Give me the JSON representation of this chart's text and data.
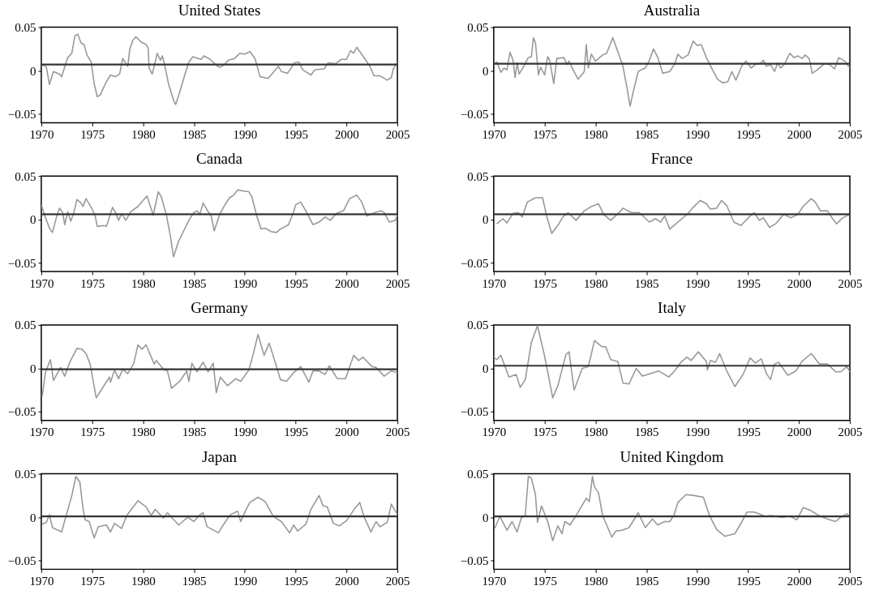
{
  "chart_data": [
    {
      "type": "line",
      "title": "United States",
      "color": "#999999",
      "xlim": [
        1970,
        2005
      ],
      "ylim": [
        -0.06,
        0.05
      ],
      "xticks": [
        1970,
        1975,
        1980,
        1985,
        1990,
        1995,
        2000,
        2005
      ],
      "yticks": [
        -0.05,
        0,
        0.05
      ],
      "ref_lines": [
        {
          "axis": "y",
          "value": 0.007,
          "color": "#333333"
        }
      ],
      "x": [
        1970,
        1970.5,
        1970.8,
        1971.2,
        1971.8,
        1972,
        1972.3,
        1972.6,
        1973,
        1973.3,
        1973.6,
        1973.9,
        1974.2,
        1974.5,
        1974.9,
        1975.2,
        1975.5,
        1975.8,
        1976.3,
        1976.8,
        1977.3,
        1977.7,
        1978,
        1978.5,
        1978.7,
        1979,
        1979.3,
        1979.8,
        1980.3,
        1980.5,
        1980.6,
        1980.9,
        1981.2,
        1981.4,
        1981.7,
        1981.9,
        1982.1,
        1982.5,
        1983,
        1983.2,
        1983.6,
        1984.1,
        1984.5,
        1984.9,
        1985.7,
        1986,
        1986.6,
        1987.3,
        1987.6,
        1988,
        1988.4,
        1989,
        1989.5,
        1990,
        1990.5,
        1991,
        1991.5,
        1992.3,
        1992.8,
        1993.3,
        1993.6,
        1994.2,
        1994.9,
        1995.3,
        1995.7,
        1996.5,
        1996.9,
        1997.8,
        1998.2,
        1998.9,
        1999.5,
        2000,
        2000.4,
        2000.7,
        2001,
        2001.6,
        2002.3,
        2002.7,
        2003.3,
        2004,
        2004.4,
        2004.6,
        2005
      ],
      "values": [
        0.008,
        0.004,
        -0.016,
        -0.001,
        -0.004,
        -0.007,
        0.004,
        0.015,
        0.02,
        0.04,
        0.042,
        0.032,
        0.03,
        0.018,
        0.01,
        -0.015,
        -0.03,
        -0.028,
        -0.015,
        -0.005,
        -0.007,
        -0.004,
        0.014,
        0.005,
        0.025,
        0.035,
        0.039,
        0.033,
        0.03,
        0.026,
        0.003,
        -0.004,
        0.01,
        0.02,
        0.012,
        0.017,
        0.008,
        -0.015,
        -0.034,
        -0.039,
        -0.025,
        -0.005,
        0.01,
        0.016,
        0.013,
        0.017,
        0.013,
        0.005,
        0.004,
        0.007,
        0.012,
        0.014,
        0.02,
        0.019,
        0.022,
        0.014,
        -0.007,
        -0.009,
        -0.002,
        0.005,
        -0.001,
        -0.003,
        0.009,
        0.01,
        0.001,
        -0.005,
        0.001,
        0.002,
        0.009,
        0.008,
        0.013,
        0.013,
        0.023,
        0.02,
        0.027,
        0.017,
        0.005,
        -0.006,
        -0.006,
        -0.011,
        -0.008,
        0.002,
        0.01
      ]
    },
    {
      "type": "line",
      "title": "Australia",
      "color": "#999999",
      "xlim": [
        1970,
        2005
      ],
      "ylim": [
        -0.06,
        0.05
      ],
      "xticks": [
        1970,
        1975,
        1980,
        1985,
        1990,
        1995,
        2000,
        2005
      ],
      "yticks": [
        -0.05,
        0,
        0.05
      ],
      "ref_lines": [
        {
          "axis": "y",
          "value": 0.008,
          "color": "#333333"
        }
      ],
      "x": [
        1970,
        1970.3,
        1970.7,
        1971,
        1971.3,
        1971.6,
        1971.9,
        1972.1,
        1972.3,
        1972.5,
        1973,
        1973.4,
        1973.7,
        1973.9,
        1974.1,
        1974.4,
        1974.6,
        1975,
        1975.3,
        1975.5,
        1975.9,
        1976.2,
        1976.9,
        1977.2,
        1977.4,
        1977.8,
        1978.3,
        1978.9,
        1979.1,
        1979.3,
        1979.6,
        1980,
        1980.7,
        1981.1,
        1981.7,
        1982.1,
        1982.4,
        1982.7,
        1983.1,
        1983.4,
        1983.7,
        1984.2,
        1984.5,
        1984.9,
        1985.3,
        1985.7,
        1986.1,
        1986.6,
        1987.3,
        1987.8,
        1988.1,
        1988.5,
        1989.1,
        1989.6,
        1990,
        1990.4,
        1990.9,
        1991.5,
        1992,
        1992.5,
        1993,
        1993.4,
        1993.8,
        1994.4,
        1994.8,
        1995.3,
        1995.8,
        1996.2,
        1996.5,
        1996.8,
        1997.2,
        1997.6,
        1997.9,
        1998.2,
        1998.6,
        1999.1,
        1999.5,
        1999.9,
        2000.3,
        2000.6,
        2001,
        2001.3,
        2001.8,
        2002.5,
        2003,
        2003.5,
        2003.9,
        2004.5,
        2005
      ],
      "values": [
        0.007,
        0.01,
        -0.002,
        0.003,
        0.001,
        0.021,
        0.012,
        -0.008,
        0.009,
        -0.004,
        0.006,
        0.015,
        0.016,
        0.038,
        0.032,
        -0.005,
        0.004,
        -0.005,
        0.016,
        0.012,
        -0.015,
        0.014,
        0.015,
        0.007,
        0.011,
        0.001,
        -0.01,
        -0.001,
        0.03,
        0.003,
        0.019,
        0.011,
        0.018,
        0.02,
        0.038,
        0.025,
        0.015,
        0.005,
        -0.02,
        -0.041,
        -0.025,
        -0.001,
        0.001,
        0.003,
        0.012,
        0.025,
        0.016,
        -0.003,
        -0.001,
        0.008,
        0.019,
        0.014,
        0.018,
        0.034,
        0.029,
        0.03,
        0.015,
        0.001,
        -0.01,
        -0.014,
        -0.013,
        -0.001,
        -0.011,
        0.006,
        0.011,
        0.003,
        0.008,
        0.008,
        0.012,
        0.005,
        0.007,
        -0.001,
        0.009,
        0.003,
        0.008,
        0.02,
        0.015,
        0.017,
        0.014,
        0.018,
        0.014,
        -0.003,
        0.001,
        0.008,
        0.007,
        0.002,
        0.015,
        0.011,
        0.003
      ]
    },
    {
      "type": "line",
      "title": "Canada",
      "color": "#999999",
      "xlim": [
        1970,
        2005
      ],
      "ylim": [
        -0.06,
        0.05
      ],
      "xticks": [
        1970,
        1975,
        1980,
        1985,
        1990,
        1995,
        2000,
        2005
      ],
      "yticks": [
        -0.05,
        0,
        0.05
      ],
      "ref_lines": [
        {
          "axis": "y",
          "value": 0.006,
          "color": "#333333"
        }
      ],
      "x": [
        1970,
        1970.3,
        1970.8,
        1971.1,
        1971.5,
        1971.8,
        1972.1,
        1972.3,
        1972.6,
        1972.9,
        1973.2,
        1973.5,
        1973.9,
        1974.1,
        1974.4,
        1975,
        1975.3,
        1975.5,
        1976.2,
        1976.4,
        1977,
        1977.3,
        1977.6,
        1977.9,
        1978.3,
        1978.8,
        1979.5,
        1980,
        1980.4,
        1980.7,
        1981,
        1981.5,
        1981.8,
        1982.3,
        1982.7,
        1983,
        1983.5,
        1984,
        1984.5,
        1985,
        1985.3,
        1985.6,
        1985.9,
        1986.4,
        1986.7,
        1987,
        1987.5,
        1988,
        1988.5,
        1988.9,
        1989.3,
        1989.8,
        1990.4,
        1990.7,
        1991.2,
        1991.6,
        1992,
        1992.6,
        1993.1,
        1993.5,
        1994.3,
        1994.8,
        1995,
        1995.5,
        1996,
        1996.7,
        1997.3,
        1997.9,
        1998.4,
        1999,
        1999.7,
        2000.3,
        2001,
        2001.5,
        2002,
        2002.8,
        2003.4,
        2003.7,
        2004.2,
        2004.8,
        2005
      ],
      "values": [
        0.017,
        0.006,
        -0.01,
        -0.015,
        0.003,
        0.013,
        0.008,
        -0.006,
        0.009,
        -0.002,
        0.008,
        0.023,
        0.019,
        0.015,
        0.024,
        0.012,
        0.004,
        -0.008,
        -0.007,
        -0.008,
        0.014,
        0.008,
        -0.001,
        0.007,
        -0.001,
        0.009,
        0.015,
        0.022,
        0.027,
        0.016,
        0.005,
        0.032,
        0.026,
        0.005,
        -0.02,
        -0.043,
        -0.025,
        -0.013,
        -0.001,
        0.008,
        0.01,
        0.006,
        0.019,
        0.009,
        0.004,
        -0.013,
        0.005,
        0.016,
        0.025,
        0.028,
        0.034,
        0.033,
        0.032,
        0.026,
        0.003,
        -0.011,
        -0.01,
        -0.014,
        -0.015,
        -0.011,
        -0.006,
        0.009,
        0.017,
        0.02,
        0.01,
        -0.006,
        -0.003,
        0.003,
        -0.001,
        0.007,
        0.01,
        0.024,
        0.028,
        0.02,
        0.004,
        0.008,
        0.01,
        0.008,
        -0.003,
        -0.001,
        0.006
      ]
    },
    {
      "type": "line",
      "title": "France",
      "color": "#999999",
      "xlim": [
        1970,
        2005
      ],
      "ylim": [
        -0.06,
        0.05
      ],
      "xticks": [
        1970,
        1975,
        1980,
        1985,
        1990,
        1995,
        2000,
        2005
      ],
      "yticks": [
        -0.05,
        0,
        0.05
      ],
      "ref_lines": [
        {
          "axis": "y",
          "value": 0.006,
          "color": "#333333"
        }
      ],
      "x": [
        1970.3,
        1970.9,
        1971.3,
        1971.9,
        1972.4,
        1972.8,
        1973.3,
        1974.1,
        1974.8,
        1975.2,
        1975.7,
        1976.4,
        1976.8,
        1977.3,
        1978.1,
        1978.9,
        1979.6,
        1980.3,
        1980.8,
        1981.5,
        1982.4,
        1982.7,
        1983.5,
        1984.3,
        1985.3,
        1985.9,
        1986.4,
        1986.8,
        1987.3,
        1988,
        1988.5,
        1989.1,
        1989.6,
        1990.3,
        1990.9,
        1991.3,
        1991.9,
        1992.4,
        1992.9,
        1993.6,
        1994.3,
        1995.1,
        1995.6,
        1996.1,
        1996.5,
        1997.1,
        1997.7,
        1998.5,
        1999.2,
        1999.9,
        2000.4,
        2001.2,
        2001.6,
        2002.1,
        2002.8,
        2003.3,
        2003.7,
        2004.3,
        2005
      ],
      "values": [
        -0.005,
        0.001,
        -0.004,
        0.007,
        0.008,
        0.003,
        0.02,
        0.025,
        0.025,
        0.004,
        -0.016,
        -0.005,
        0.003,
        0.008,
        -0.001,
        0.01,
        0.015,
        0.018,
        0.006,
        -0.001,
        0.009,
        0.013,
        0.008,
        0.008,
        -0.003,
        0.001,
        -0.003,
        0.004,
        -0.011,
        -0.004,
        0.001,
        0.007,
        0.014,
        0.022,
        0.018,
        0.012,
        0.013,
        0.022,
        0.016,
        -0.003,
        -0.007,
        0.003,
        0.008,
        -0.001,
        0.002,
        -0.009,
        -0.005,
        0.006,
        0.002,
        0.006,
        0.015,
        0.024,
        0.02,
        0.01,
        0.01,
        0.001,
        -0.005,
        0.002,
        0.006
      ]
    },
    {
      "type": "line",
      "title": "Germany",
      "color": "#999999",
      "xlim": [
        1970,
        2005
      ],
      "ylim": [
        -0.06,
        0.05
      ],
      "xticks": [
        1970,
        1975,
        1980,
        1985,
        1990,
        1995,
        2000,
        2005
      ],
      "yticks": [
        -0.05,
        0,
        0.05
      ],
      "ref_lines": [
        {
          "axis": "y",
          "value": -0.001,
          "color": "#333333"
        }
      ],
      "x": [
        1970.1,
        1970.4,
        1970.9,
        1971.2,
        1971.9,
        1972.3,
        1972.8,
        1973.5,
        1974,
        1974.4,
        1974.8,
        1975.4,
        1976.1,
        1976.7,
        1976.8,
        1977.2,
        1977.6,
        1978,
        1978.5,
        1979.1,
        1979.5,
        1979.9,
        1980.3,
        1981.1,
        1981.3,
        1982,
        1982.4,
        1982.8,
        1983.6,
        1984.3,
        1984.5,
        1984.8,
        1985.3,
        1985.9,
        1986.4,
        1986.9,
        1987.2,
        1987.6,
        1988.3,
        1989.1,
        1989.6,
        1990.4,
        1990.8,
        1991.3,
        1991.9,
        1992.4,
        1993.1,
        1993.5,
        1994.1,
        1994.8,
        1995.5,
        1996.3,
        1996.7,
        1997.3,
        1997.9,
        1998.3,
        1999.1,
        1999.9,
        2000.7,
        2001.2,
        2001.6,
        2002.5,
        2002.9,
        2003.7,
        2004.4,
        2005
      ],
      "values": [
        -0.032,
        -0.005,
        0.01,
        -0.014,
        0.001,
        -0.009,
        0.007,
        0.023,
        0.022,
        0.017,
        0.005,
        -0.034,
        -0.021,
        -0.01,
        -0.016,
        -0.002,
        -0.012,
        -0.001,
        -0.006,
        0.006,
        0.027,
        0.022,
        0.027,
        0.005,
        0.009,
        -0.001,
        -0.003,
        -0.023,
        -0.015,
        -0.003,
        -0.015,
        0.006,
        -0.004,
        0.007,
        -0.004,
        0.006,
        -0.028,
        -0.01,
        -0.02,
        -0.012,
        -0.015,
        -0.002,
        0.015,
        0.039,
        0.015,
        0.029,
        0.003,
        -0.013,
        -0.015,
        -0.005,
        0.002,
        -0.016,
        -0.003,
        -0.003,
        -0.007,
        0.003,
        -0.012,
        -0.012,
        0.015,
        0.009,
        0.013,
        0.002,
        0.001,
        -0.009,
        -0.003,
        -0.005
      ]
    },
    {
      "type": "line",
      "title": "Italy",
      "color": "#999999",
      "xlim": [
        1970,
        2005
      ],
      "ylim": [
        -0.06,
        0.05
      ],
      "xticks": [
        1970,
        1975,
        1980,
        1985,
        1990,
        1995,
        2000,
        2005
      ],
      "yticks": [
        -0.05,
        0,
        0.05
      ],
      "ref_lines": [
        {
          "axis": "y",
          "value": 0.003,
          "color": "#333333"
        }
      ],
      "x": [
        1970,
        1970.3,
        1970.7,
        1971.5,
        1972.2,
        1972.6,
        1973.1,
        1973.7,
        1974.3,
        1975,
        1975.8,
        1976.3,
        1977.1,
        1977.4,
        1977.9,
        1978.7,
        1979.3,
        1979.9,
        1980.6,
        1981,
        1981.5,
        1982.2,
        1982.7,
        1983.3,
        1984,
        1984.6,
        1985.4,
        1986.2,
        1987.2,
        1987.7,
        1988.4,
        1989,
        1989.4,
        1990.1,
        1990.9,
        1991,
        1991.3,
        1991.8,
        1992.2,
        1992.9,
        1993.7,
        1994.5,
        1995.2,
        1995.7,
        1996.3,
        1996.8,
        1997.2,
        1997.6,
        1998,
        1998.9,
        1999.7,
        2000.3,
        2001.2,
        2002,
        2002.8,
        2003.6,
        2004.1,
        2004.7,
        2005
      ],
      "values": [
        0.013,
        0.01,
        0.015,
        -0.01,
        -0.007,
        -0.022,
        -0.013,
        0.03,
        0.049,
        0.014,
        -0.034,
        -0.02,
        0.016,
        0.019,
        -0.025,
        0,
        0.002,
        0.032,
        0.025,
        0.025,
        0.01,
        0.008,
        -0.017,
        -0.018,
        0,
        -0.009,
        -0.006,
        -0.003,
        -0.01,
        -0.004,
        0.007,
        0.013,
        0.009,
        0.019,
        0.008,
        -0.002,
        0.009,
        0.007,
        0.017,
        -0.003,
        -0.021,
        -0.007,
        0.012,
        0.006,
        0.011,
        -0.006,
        -0.013,
        0.005,
        0.007,
        -0.008,
        -0.003,
        0.008,
        0.017,
        0.005,
        0.005,
        -0.004,
        -0.004,
        0.002,
        -0.004
      ]
    },
    {
      "type": "line",
      "title": "Japan",
      "color": "#999999",
      "xlim": [
        1970,
        2005
      ],
      "ylim": [
        -0.06,
        0.05
      ],
      "xticks": [
        1970,
        1975,
        1980,
        1985,
        1990,
        1995,
        2000,
        2005
      ],
      "yticks": [
        -0.05,
        0,
        0.05
      ],
      "ref_lines": [
        {
          "axis": "y",
          "value": 0.001,
          "color": "#333333"
        }
      ],
      "x": [
        1970.1,
        1970.5,
        1970.8,
        1971.1,
        1972,
        1973,
        1973.4,
        1973.8,
        1974.1,
        1974.3,
        1974.7,
        1975.2,
        1975.6,
        1976.4,
        1976.8,
        1977.2,
        1977.9,
        1978.4,
        1979.5,
        1980.3,
        1980.8,
        1981.2,
        1982,
        1982.4,
        1983.5,
        1984.4,
        1985,
        1985.5,
        1985.9,
        1986.3,
        1987.4,
        1988.1,
        1988.6,
        1989.3,
        1989.6,
        1990.1,
        1990.5,
        1991.3,
        1992,
        1992.8,
        1993.6,
        1994.4,
        1994.8,
        1995.2,
        1996,
        1996.5,
        1997.3,
        1997.7,
        1998.1,
        1998.7,
        1999.3,
        2000,
        2000.8,
        2001.3,
        2001.7,
        2002.4,
        2002.9,
        2003.3,
        2004,
        2004.4,
        2005
      ],
      "values": [
        -0.008,
        -0.006,
        0.003,
        -0.012,
        -0.017,
        0.025,
        0.047,
        0.04,
        0.01,
        -0.003,
        -0.005,
        -0.024,
        -0.011,
        -0.009,
        -0.017,
        -0.007,
        -0.013,
        0.002,
        0.019,
        0.012,
        0.002,
        0.009,
        -0.001,
        0.005,
        -0.009,
        0,
        -0.005,
        0.002,
        0.005,
        -0.011,
        -0.018,
        -0.005,
        0.003,
        0.007,
        -0.005,
        0.008,
        0.017,
        0.023,
        0.018,
        0.001,
        -0.005,
        -0.018,
        -0.009,
        -0.016,
        -0.008,
        0.009,
        0.025,
        0.013,
        0.012,
        -0.007,
        -0.01,
        -0.004,
        0.01,
        0.017,
        0.001,
        -0.017,
        -0.005,
        -0.011,
        -0.006,
        0.015,
        0.003
      ]
    },
    {
      "type": "line",
      "title": "United Kingdom",
      "color": "#999999",
      "xlim": [
        1970,
        2005
      ],
      "ylim": [
        -0.06,
        0.05
      ],
      "xticks": [
        1970,
        1975,
        1980,
        1985,
        1990,
        1995,
        2000,
        2005
      ],
      "yticks": [
        -0.05,
        0,
        0.05
      ],
      "ref_lines": [
        {
          "axis": "y",
          "value": 0.001,
          "color": "#333333"
        }
      ],
      "x": [
        1970.1,
        1970.6,
        1971.3,
        1971.8,
        1972.3,
        1972.7,
        1973.1,
        1973.4,
        1973.7,
        1974.1,
        1974.3,
        1974.7,
        1975.3,
        1975.8,
        1976.3,
        1976.7,
        1977,
        1977.5,
        1978.2,
        1979.1,
        1979.4,
        1979.7,
        1979.9,
        1980.3,
        1980.7,
        1981.6,
        1982,
        1982.6,
        1983.3,
        1984.2,
        1984.9,
        1985.6,
        1986.1,
        1986.8,
        1987.3,
        1987.7,
        1988.1,
        1988.9,
        1989.7,
        1990.6,
        1991.2,
        1991.9,
        1992.7,
        1993.7,
        1994.4,
        1994.9,
        1995.6,
        1996.7,
        1997.2,
        1998.3,
        1999.1,
        1999.8,
        2000.4,
        2001.1,
        2002.1,
        2003,
        2003.6,
        2004.1,
        2004.7,
        2005
      ],
      "values": [
        -0.013,
        0.001,
        -0.015,
        -0.005,
        -0.017,
        -0.001,
        0.002,
        0.047,
        0.045,
        0.026,
        -0.006,
        0.013,
        -0.005,
        -0.027,
        -0.01,
        -0.019,
        -0.005,
        -0.009,
        0.004,
        0.022,
        0.018,
        0.047,
        0.035,
        0.028,
        0.002,
        -0.023,
        -0.016,
        -0.015,
        -0.012,
        0.005,
        -0.012,
        -0.002,
        -0.009,
        -0.005,
        -0.005,
        0.002,
        0.017,
        0.026,
        0.025,
        0.023,
        0.002,
        -0.014,
        -0.022,
        -0.019,
        -0.005,
        0.006,
        0.006,
        0.001,
        0.002,
        0,
        0.001,
        -0.003,
        0.011,
        0.008,
        0.001,
        -0.003,
        -0.005,
        0,
        0.004,
        0
      ]
    }
  ]
}
